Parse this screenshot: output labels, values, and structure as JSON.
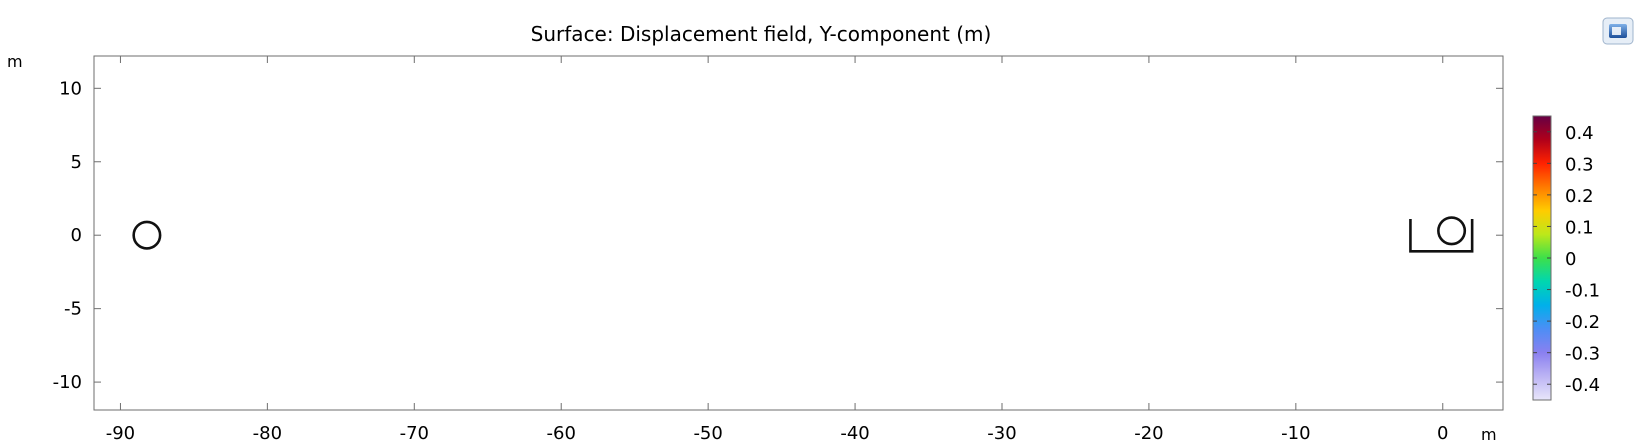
{
  "chart_data": {
    "type": "heatmap",
    "title": "Surface: Displacement field, Y-component (m)",
    "xlabel": "m",
    "ylabel": "m",
    "xlim": [
      -91.8,
      4.1
    ],
    "ylim": [
      -11.9,
      12.2
    ],
    "xticks": [
      -90,
      -80,
      -70,
      -60,
      -50,
      -40,
      -30,
      -20,
      -10,
      0
    ],
    "xtick_labels": [
      "-90",
      "-80",
      "-70",
      "-60",
      "-50",
      "-40",
      "-30",
      "-20",
      "-10",
      "0"
    ],
    "yticks": [
      10,
      5,
      0,
      -5,
      -10
    ],
    "ytick_labels": [
      "10",
      "5",
      "0",
      "-5",
      "-10"
    ],
    "geometry": {
      "left_circle": {
        "cx": -88.2,
        "cy": 0,
        "r": 0.9
      },
      "right_circle": {
        "cx": 0.6,
        "cy": 0.3,
        "r": 0.9
      },
      "channel": {
        "x": [
          -2.2,
          2.0
        ],
        "y_bottom": -1.1,
        "y_top": 1.1
      }
    },
    "colorbar": {
      "range": [
        -0.45,
        0.45
      ],
      "ticks": [
        0.4,
        0.3,
        0.2,
        0.1,
        0,
        -0.1,
        -0.2,
        -0.3,
        -0.4
      ],
      "tick_labels": [
        "0.4",
        "0.3",
        "0.2",
        "0.1",
        "0",
        "-0.1",
        "-0.2",
        "-0.3",
        "-0.4"
      ],
      "colors": [
        "#660044",
        "#b0001a",
        "#ff2200",
        "#ff7a00",
        "#ffcc00",
        "#bde81a",
        "#3de04a",
        "#00d6b0",
        "#00b0ea",
        "#4d8ef5",
        "#8a80f0",
        "#bcb4f4",
        "#e8e6fa"
      ]
    },
    "grid": false,
    "legend": "colorbar-right"
  },
  "icons": {
    "corner": "plot-toolbar-icon"
  }
}
